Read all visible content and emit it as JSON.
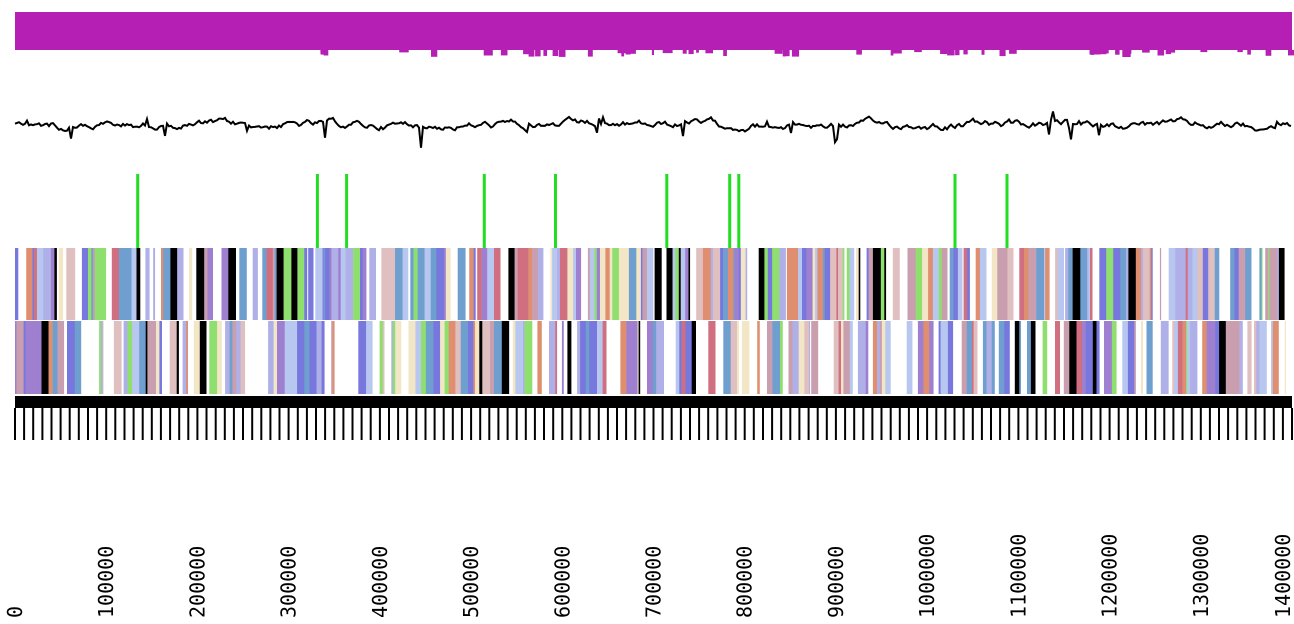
{
  "colors": {
    "top_band": "#b51fb3",
    "gc_plot": "#000000",
    "marker": "#22dd22",
    "ruler": "#000000",
    "feature_palette": [
      "#6f9fcf",
      "#8fdf6f",
      "#cf6f7f",
      "#dfbfbf",
      "#7777dd",
      "#000000",
      "#b7c7ef",
      "#df8f6f",
      "#9f7fcf",
      "#c99faf",
      "#f2e6c6",
      "#b0b0e8"
    ]
  },
  "axis": {
    "min": 0,
    "max": 1400000,
    "tick_labels": [
      "0",
      "100000",
      "200000",
      "300000",
      "400000",
      "500000",
      "600000",
      "700000",
      "800000",
      "900000",
      "1000000",
      "1100000",
      "1200000",
      "1300000",
      "1400000"
    ]
  },
  "markers": [
    134000,
    331000,
    363000,
    514000,
    592000,
    714000,
    783000,
    793000,
    1030000,
    1087000
  ]
}
